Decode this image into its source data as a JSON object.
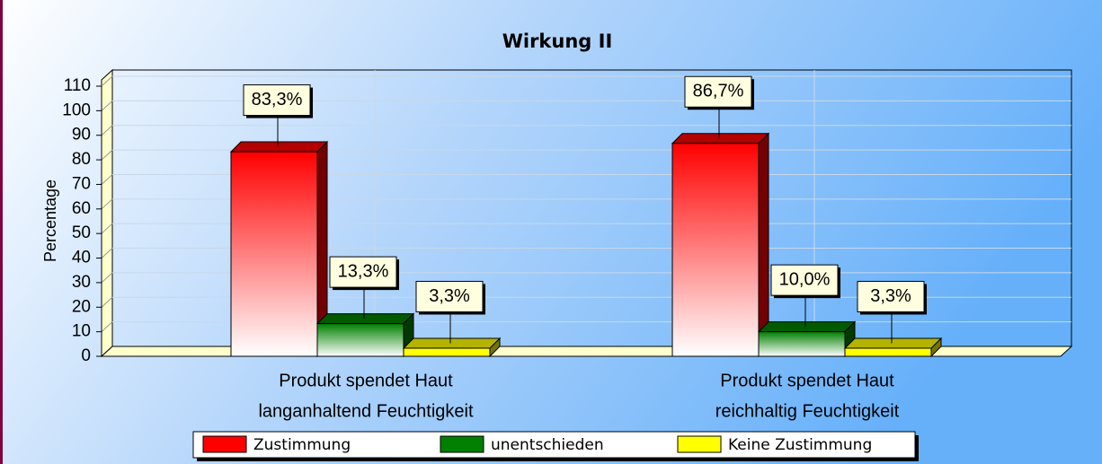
{
  "chart_data": {
    "type": "bar",
    "title": "Wirkung II",
    "y_label": "Percentage",
    "categories": [
      [
        "Produkt spendet Haut",
        "langanhaltend Feuchtigkeit"
      ],
      [
        "Produkt spendet Haut",
        "reichhaltig Feuchtigkeit"
      ]
    ],
    "series": [
      {
        "name": "Zustimmung",
        "color": "#ff0000",
        "values": [
          83.3,
          86.7
        ],
        "value_labels": [
          "83,3%",
          "86,7%"
        ]
      },
      {
        "name": "unentschieden",
        "color": "#008000",
        "values": [
          13.3,
          10.0
        ],
        "value_labels": [
          "13,3%",
          "10,0%"
        ]
      },
      {
        "name": "Keine Zustimmung",
        "color": "#ffff00",
        "values": [
          3.3,
          3.3
        ],
        "value_labels": [
          "3,3%",
          "3,3%"
        ]
      }
    ],
    "ylim": [
      0,
      110
    ],
    "yticks": [
      0,
      10,
      20,
      30,
      40,
      50,
      60,
      70,
      80,
      90,
      100,
      110
    ],
    "grid": true
  }
}
